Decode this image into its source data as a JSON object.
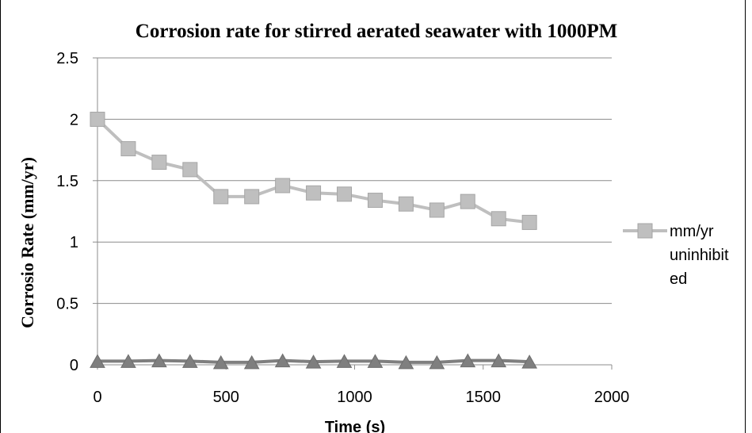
{
  "chart_data": {
    "type": "line",
    "title": "Corrosion rate for stirred aerated seawater with 1000PM",
    "xlabel": "Time (s)",
    "ylabel": "Corrosio Rate (mm/yr)",
    "xlim": [
      0,
      2000
    ],
    "ylim": [
      0,
      2.5
    ],
    "x_ticks": [
      "0",
      "500",
      "1000",
      "1500",
      "2000"
    ],
    "y_ticks": [
      "0",
      "0.5",
      "1",
      "1.5",
      "2",
      "2.5"
    ],
    "grid": "horizontal",
    "legend_position": "right",
    "x": [
      0,
      120,
      240,
      360,
      480,
      600,
      720,
      840,
      960,
      1080,
      1200,
      1320,
      1440,
      1560,
      1680
    ],
    "series": [
      {
        "name": "mm/yr uninhibited",
        "legend_lines": [
          "mm/yr",
          "uninhibit",
          "ed"
        ],
        "marker": "square",
        "color": "#bfbfbf",
        "values": [
          2.0,
          1.76,
          1.65,
          1.59,
          1.37,
          1.37,
          1.46,
          1.4,
          1.39,
          1.34,
          1.31,
          1.26,
          1.33,
          1.19,
          1.16
        ]
      },
      {
        "marker": "triangle",
        "color": "#7f7f7f",
        "values": [
          0.03,
          0.03,
          0.035,
          0.03,
          0.02,
          0.02,
          0.035,
          0.025,
          0.03,
          0.03,
          0.02,
          0.02,
          0.035,
          0.035,
          0.025
        ]
      }
    ]
  }
}
